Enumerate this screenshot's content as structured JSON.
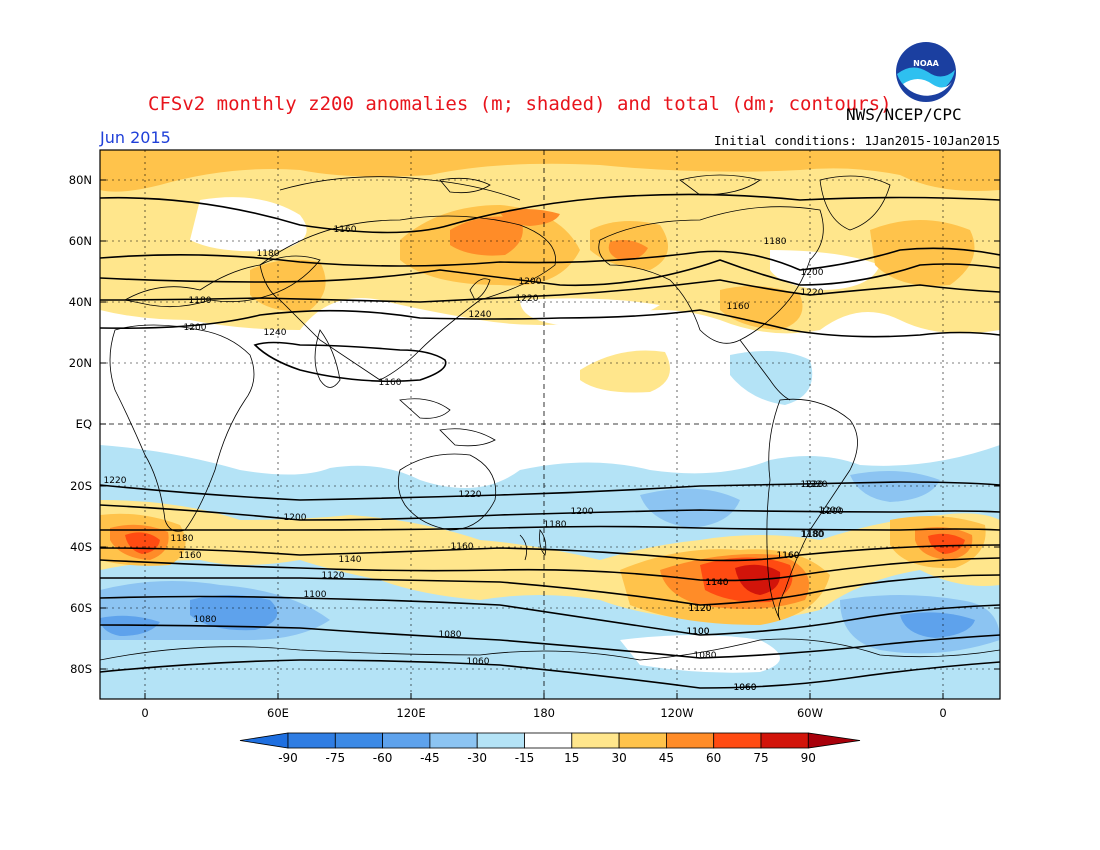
{
  "header": {
    "title": "CFSv2 monthly z200 anomalies (m; shaded) and total (dm; contours)",
    "agency": "NWS/NCEP/CPC",
    "month": "Jun 2015",
    "initial_conditions": "Initial conditions: 1Jan2015-10Jan2015",
    "logo_text": "NOAA"
  },
  "map": {
    "lat_labels": [
      "80N",
      "60N",
      "40N",
      "20N",
      "EQ",
      "20S",
      "40S",
      "60S",
      "80S"
    ],
    "lon_labels": [
      "0",
      "60E",
      "120E",
      "180",
      "120W",
      "60W",
      "0"
    ],
    "contour_labels": [
      "1160",
      "1180",
      "1200",
      "1220",
      "1240",
      "1240",
      "1160",
      "1180",
      "1200",
      "1220",
      "1160",
      "1180",
      "1200",
      "1220",
      "1220",
      "1200",
      "1180",
      "1160",
      "1140",
      "1120",
      "1100",
      "1080",
      "1080",
      "1060",
      "1220",
      "1200",
      "1180",
      "1160",
      "1140",
      "1120",
      "1100",
      "1060",
      "1200",
      "1180",
      "1160",
      "1220",
      "1200",
      "1180",
      "1160",
      "1140",
      "1120",
      "1100",
      "1080",
      "1060"
    ],
    "colors": {
      "neg90": "#1e6fe0",
      "neg75": "#3c8ae6",
      "neg60": "#5ea2ec",
      "neg45": "#8cc4f2",
      "neg30": "#b4e3f6",
      "neutral": "#ffffff",
      "pos15": "#ffe68c",
      "pos30": "#ffc34b",
      "pos45": "#ff8c28",
      "pos60": "#ff4b12",
      "pos75": "#d2140a"
    }
  },
  "colorbar": {
    "ticks": [
      "-90",
      "-75",
      "-60",
      "-45",
      "-30",
      "-15",
      "15",
      "30",
      "45",
      "60",
      "75",
      "90"
    ],
    "colors": [
      "#1e6fe0",
      "#2f7de3",
      "#3c8ae6",
      "#5ea2ec",
      "#8cc4f2",
      "#b4e3f6",
      "#ffffff",
      "#ffe68c",
      "#ffc34b",
      "#ff8c28",
      "#ff4b12",
      "#d2140a",
      "#a8000a"
    ]
  }
}
